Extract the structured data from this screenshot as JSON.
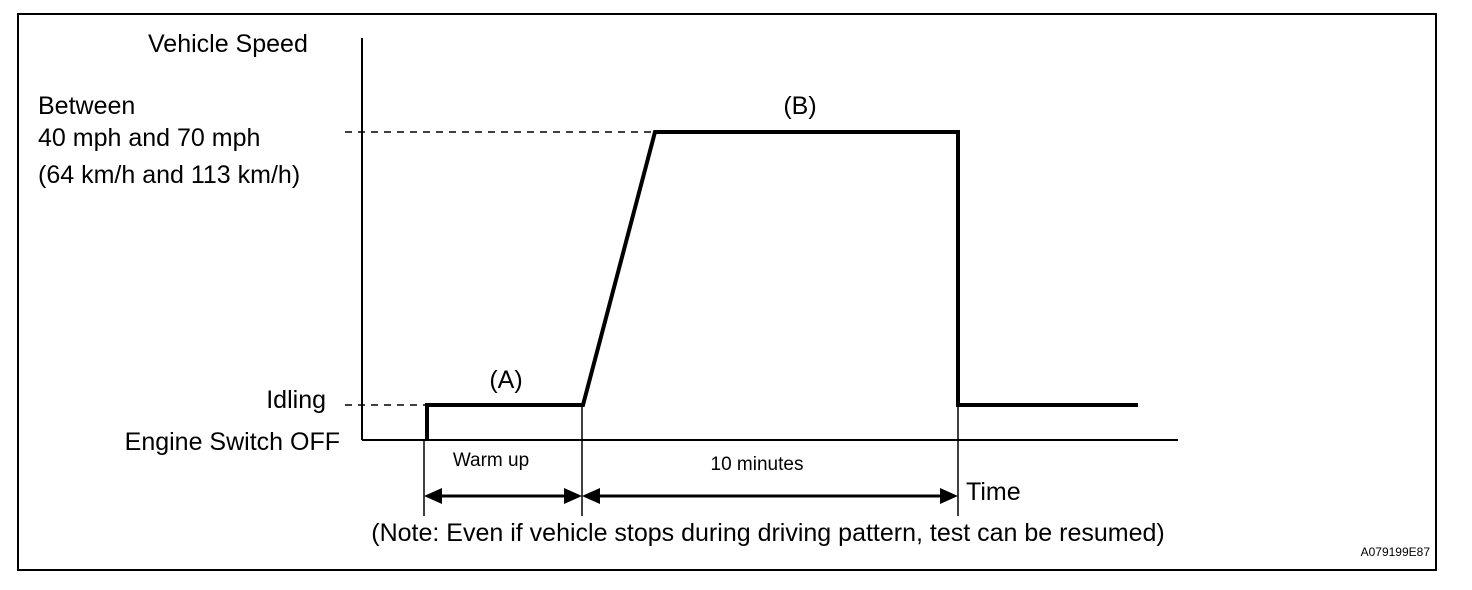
{
  "labels": {
    "y_axis": "Vehicle Speed",
    "speed_line1": "Between",
    "speed_line2": "40 mph and 70 mph",
    "speed_line3": "(64 km/h and 113 km/h)",
    "idling": "Idling",
    "engine_off": "Engine Switch OFF",
    "segment_a": "(A)",
    "segment_b": "(B)",
    "warm_up": "Warm up",
    "ten_minutes": "10 minutes",
    "time_axis": "Time",
    "note": "(Note: Even if vehicle stops during driving pattern, test can be resumed)",
    "figure_id": "A079199E87"
  }
}
